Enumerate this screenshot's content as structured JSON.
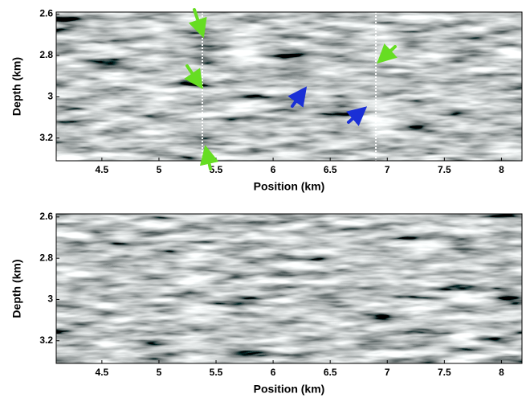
{
  "chart_data": [
    {
      "type": "image",
      "xlabel": "Position (km)",
      "ylabel": "Depth (km)",
      "xlim": [
        4.1,
        8.18
      ],
      "ylim": [
        2.59,
        3.31
      ],
      "xticks": [
        4.5,
        5,
        5.5,
        6,
        6.5,
        7,
        7.5,
        8
      ],
      "yticks": [
        2.6,
        2.8,
        3,
        3.2
      ],
      "vlines": [
        5.38,
        6.9
      ]
    },
    {
      "type": "image",
      "xlabel": "Position (km)",
      "ylabel": "Depth (km)",
      "xlim": [
        4.1,
        8.18
      ],
      "ylim": [
        2.585,
        3.31
      ],
      "xticks": [
        4.5,
        5,
        5.5,
        6,
        6.5,
        7,
        7.5,
        8
      ],
      "yticks": [
        2.6,
        2.8,
        3,
        3.2
      ],
      "vlines": []
    }
  ]
}
